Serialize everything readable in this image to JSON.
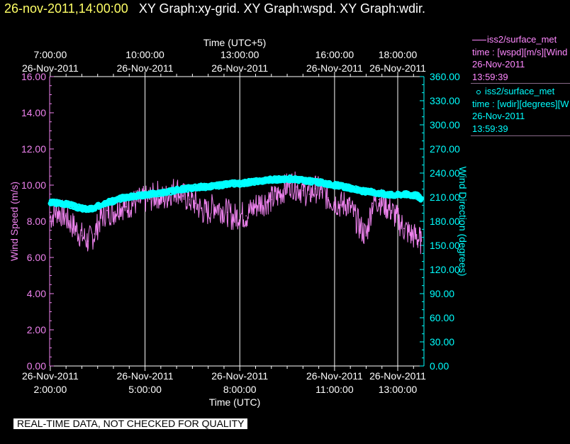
{
  "header": {
    "date_label": "26-nov-2011,14:00:00",
    "graphs_label": "XY Graph:xy-grid.  XY Graph:wspd.  XY Graph:wdir."
  },
  "legend": {
    "wspd": {
      "name": "iss2/surface_met",
      "line1": "time : [wspd][m/s][Wind",
      "line2": "26-Nov-2011",
      "line3": "13:59:39",
      "color": "#ff88ff"
    },
    "wdir": {
      "name": "iss2/surface_met",
      "line1": "time : [wdir][degrees][W",
      "line2": "26-Nov-2011",
      "line3": "13:59:39",
      "color": "#00ffff"
    }
  },
  "footer": {
    "quality_label": "REAL-TIME DATA, NOT CHECKED FOR QUALITY"
  },
  "chart_data": {
    "type": "line",
    "top_axis_title": "Time (UTC+5)",
    "bottom_axis_title": "Time (UTC)",
    "xlim": [
      1.98,
      13.83
    ],
    "top_ticks": [
      {
        "x": 2.0,
        "time": "7:00:00",
        "date": "26-Nov-2011"
      },
      {
        "x": 5.0,
        "time": "10:00:00",
        "date": "26-Nov-2011"
      },
      {
        "x": 8.0,
        "time": "13:00:00",
        "date": "26-Nov-2011"
      },
      {
        "x": 11.0,
        "time": "16:00:00",
        "date": "26-Nov-2011"
      },
      {
        "x": 13.0,
        "time": "18:00:00",
        "date": "26-Nov-2011"
      }
    ],
    "bottom_ticks": [
      {
        "x": 2.0,
        "date": "26-Nov-2011",
        "time": "2:00:00"
      },
      {
        "x": 5.0,
        "date": "26-Nov-2011",
        "time": "5:00:00"
      },
      {
        "x": 8.0,
        "date": "26-Nov-2011",
        "time": "8:00:00"
      },
      {
        "x": 11.0,
        "date": "26-Nov-2011",
        "time": "11:00:00"
      },
      {
        "x": 13.0,
        "date": "26-Nov-2011",
        "time": "13:00:00"
      }
    ],
    "gridlines_x": [
      5.0,
      8.0,
      11.0,
      13.0
    ],
    "left_axis": {
      "label": "Wind Speed (m/s)",
      "ylim": [
        0,
        16
      ],
      "ticks": [
        "0.00",
        "2.00",
        "4.00",
        "6.00",
        "8.00",
        "10.00",
        "12.00",
        "14.00",
        "16.00"
      ],
      "color": "#ff88ff"
    },
    "right_axis": {
      "label": "Wind Direction (degrees)",
      "ylim": [
        0,
        360
      ],
      "ticks": [
        "0.00",
        "30.00",
        "60.00",
        "90.00",
        "120.00",
        "150.00",
        "180.00",
        "210.00",
        "240.00",
        "270.00",
        "300.00",
        "330.00",
        "360.00"
      ],
      "color": "#00ffff"
    },
    "series": [
      {
        "name": "iss2/surface_met time : [wspd][m/s]",
        "axis": "left",
        "style": "line",
        "color": "#ee82ee",
        "x": [
          2.0,
          2.2,
          2.4,
          2.6,
          2.8,
          3.0,
          3.2,
          3.4,
          3.6,
          3.8,
          4.0,
          4.2,
          4.4,
          4.6,
          4.8,
          5.0,
          5.2,
          5.4,
          5.6,
          5.8,
          6.0,
          6.2,
          6.4,
          6.6,
          6.8,
          7.0,
          7.2,
          7.4,
          7.6,
          7.8,
          8.0,
          8.2,
          8.4,
          8.6,
          8.8,
          9.0,
          9.2,
          9.4,
          9.6,
          9.8,
          10.0,
          10.2,
          10.4,
          10.6,
          10.8,
          11.0,
          11.2,
          11.4,
          11.6,
          11.8,
          12.0,
          12.2,
          12.4,
          12.6,
          12.8,
          13.0,
          13.2,
          13.4,
          13.6,
          13.75
        ],
        "values": [
          8.2,
          8.6,
          8.4,
          8.0,
          7.6,
          7.2,
          6.9,
          7.3,
          8.2,
          8.6,
          8.5,
          8.9,
          8.8,
          9.0,
          9.1,
          9.2,
          9.3,
          9.5,
          9.2,
          9.6,
          9.8,
          9.4,
          9.2,
          9.0,
          8.6,
          8.5,
          8.9,
          8.7,
          8.5,
          8.2,
          8.4,
          8.3,
          8.7,
          9.0,
          9.1,
          9.2,
          9.4,
          9.8,
          10.1,
          9.9,
          9.7,
          9.5,
          9.8,
          9.6,
          9.3,
          9.1,
          8.9,
          9.0,
          8.4,
          7.7,
          7.2,
          9.0,
          9.2,
          8.9,
          8.6,
          8.1,
          7.6,
          7.3,
          7.1,
          6.9
        ]
      },
      {
        "name": "iss2/surface_met time : [wdir][degrees]",
        "axis": "right",
        "style": "markers",
        "color": "#00ffff",
        "x": [
          2.0,
          2.2,
          2.4,
          2.6,
          2.8,
          3.0,
          3.2,
          3.4,
          3.6,
          3.8,
          4.0,
          4.2,
          4.4,
          4.6,
          4.8,
          5.0,
          5.2,
          5.4,
          5.6,
          5.8,
          6.0,
          6.2,
          6.4,
          6.6,
          6.8,
          7.0,
          7.2,
          7.4,
          7.6,
          7.8,
          8.0,
          8.2,
          8.4,
          8.6,
          8.8,
          9.0,
          9.2,
          9.4,
          9.6,
          9.8,
          10.0,
          10.2,
          10.4,
          10.6,
          10.8,
          11.0,
          11.2,
          11.4,
          11.6,
          11.8,
          12.0,
          12.2,
          12.4,
          12.6,
          12.8,
          13.0,
          13.2,
          13.4,
          13.6,
          13.75
        ],
        "values": [
          203,
          203,
          202,
          201,
          198,
          196,
          195,
          196,
          201,
          204,
          205,
          208,
          210,
          211,
          212,
          213,
          214,
          215,
          216,
          217,
          219,
          220,
          221,
          222,
          223,
          223,
          224,
          225,
          226,
          227,
          227,
          228,
          229,
          230,
          231,
          232,
          232,
          232,
          233,
          232,
          231,
          230,
          229,
          228,
          226,
          225,
          224,
          222,
          220,
          218,
          217,
          216,
          215,
          214,
          213,
          213,
          214,
          213,
          212,
          208
        ]
      }
    ]
  }
}
